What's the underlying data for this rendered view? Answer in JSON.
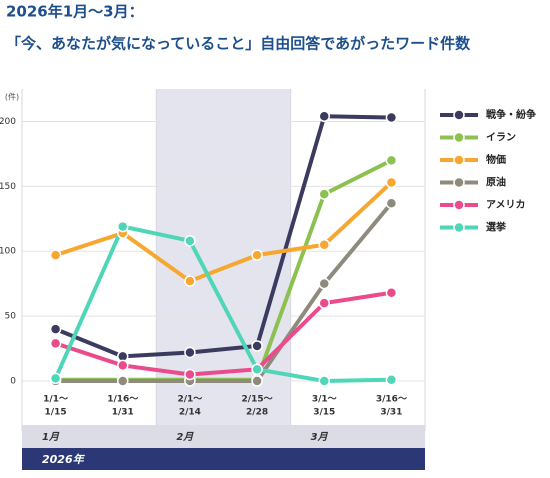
{
  "chart_data": {
    "type": "line",
    "title": "2026年1月～3月：",
    "subtitle": "「今、あなたが気になっていること」自由回答であがったワード件数",
    "y_unit": "(件)",
    "categories": [
      [
        "1/1～",
        "1/15"
      ],
      [
        "1/16～",
        "1/31"
      ],
      [
        "2/1～",
        "2/14"
      ],
      [
        "2/15～",
        "2/28"
      ],
      [
        "3/1～",
        "3/15"
      ],
      [
        "3/16～",
        "3/31"
      ]
    ],
    "periods": [
      "1月",
      "2月",
      "3月"
    ],
    "year_label": "2026年",
    "ylim": [
      0,
      225
    ],
    "yticks": [
      0,
      50,
      100,
      150,
      200
    ],
    "grid": true,
    "legend": "right",
    "series": [
      {
        "name": "戦争・紛争",
        "color": "#3b3a5f",
        "values": [
          40,
          19,
          22,
          27,
          204,
          203
        ]
      },
      {
        "name": "イラン",
        "color": "#8cc152",
        "values": [
          1,
          1,
          1,
          1,
          144,
          170
        ]
      },
      {
        "name": "物価",
        "color": "#f6a730",
        "values": [
          97,
          114,
          77,
          97,
          105,
          153
        ]
      },
      {
        "name": "原油",
        "color": "#8f8b7c",
        "values": [
          0,
          0,
          0,
          0,
          75,
          137
        ]
      },
      {
        "name": "アメリカ",
        "color": "#ea4b8b",
        "values": [
          29,
          12,
          5,
          9,
          60,
          68
        ]
      },
      {
        "name": "選挙",
        "color": "#4fd6b8",
        "values": [
          2,
          119,
          108,
          9,
          0,
          1
        ]
      }
    ]
  }
}
